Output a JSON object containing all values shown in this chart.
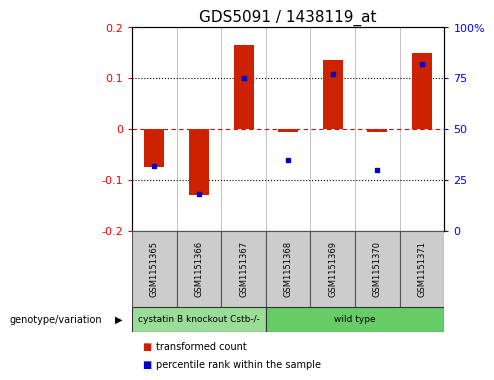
{
  "title": "GDS5091 / 1438119_at",
  "samples": [
    "GSM1151365",
    "GSM1151366",
    "GSM1151367",
    "GSM1151368",
    "GSM1151369",
    "GSM1151370",
    "GSM1151371"
  ],
  "red_bars": [
    -0.075,
    -0.13,
    0.165,
    -0.005,
    0.135,
    -0.005,
    0.15
  ],
  "blue_dots": [
    32,
    18,
    75,
    35,
    77,
    30,
    82
  ],
  "ylim_left": [
    -0.2,
    0.2
  ],
  "ylim_right": [
    0,
    100
  ],
  "left_yticks": [
    -0.2,
    -0.1,
    0,
    0.1,
    0.2
  ],
  "right_yticks": [
    0,
    25,
    50,
    75,
    100
  ],
  "right_yticklabels": [
    "0",
    "25",
    "50",
    "75",
    "100%"
  ],
  "hline_zero_color": "#dd0000",
  "hline_other_color": "#000000",
  "bar_color": "#cc2200",
  "dot_color": "#0000cc",
  "groups": [
    {
      "label": "cystatin B knockout Cstb-/-",
      "samples_idx": [
        0,
        1,
        2
      ],
      "color": "#99dd99"
    },
    {
      "label": "wild type",
      "samples_idx": [
        3,
        4,
        5,
        6
      ],
      "color": "#66cc66"
    }
  ],
  "genotype_label": "genotype/variation",
  "legend_items": [
    {
      "label": "transformed count",
      "color": "#cc2200"
    },
    {
      "label": "percentile rank within the sample",
      "color": "#0000cc"
    }
  ],
  "background_plot": "#ffffff",
  "background_table": "#cccccc",
  "title_fontsize": 11,
  "tick_fontsize": 8,
  "label_fontsize": 8
}
